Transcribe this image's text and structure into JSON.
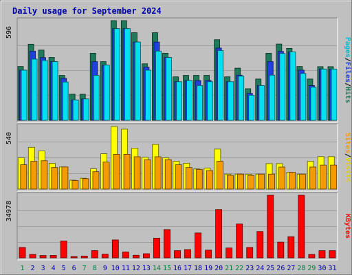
{
  "chart_data": [
    {
      "type": "bar",
      "title": "Daily usage for September 2024",
      "x": [
        "1",
        "2",
        "3",
        "4",
        "5",
        "6",
        "7",
        "8",
        "9",
        "10",
        "11",
        "12",
        "13",
        "14",
        "15",
        "16",
        "17",
        "18",
        "19",
        "20",
        "21",
        "22",
        "23",
        "24",
        "25",
        "26",
        "27",
        "28",
        "29",
        "30",
        "31"
      ],
      "weekend_days": [
        "1",
        "7",
        "8",
        "14",
        "15",
        "21",
        "22",
        "28",
        "29"
      ],
      "ymax_label": "596",
      "ylim": [
        0,
        596
      ],
      "series": [
        {
          "name": "Hits",
          "color": "#1e7a5a",
          "values": [
            322,
            455,
            420,
            376,
            269,
            156,
            156,
            401,
            351,
            596,
            596,
            524,
            338,
            524,
            401,
            260,
            269,
            269,
            269,
            482,
            260,
            312,
            189,
            247,
            401,
            456,
            430,
            322,
            247,
            321,
            321
          ]
        },
        {
          "name": "Files",
          "color": "#1f3fe0",
          "values": [
            300,
            413,
            375,
            351,
            251,
            122,
            128,
            351,
            330,
            548,
            548,
            468,
            318,
            468,
            376,
            231,
            238,
            238,
            238,
            432,
            231,
            270,
            161,
            208,
            351,
            412,
            409,
            300,
            208,
            306,
            306
          ]
        },
        {
          "name": "Pages",
          "color": "#00e0f0",
          "values": [
            300,
            366,
            358,
            351,
            229,
            122,
            128,
            269,
            330,
            548,
            548,
            468,
            300,
            414,
            376,
            231,
            238,
            208,
            231,
            417,
            231,
            264,
            150,
            208,
            270,
            400,
            409,
            280,
            198,
            306,
            306
          ]
        }
      ]
    },
    {
      "type": "bar",
      "ymax_label": "540",
      "ylim": [
        0,
        540
      ],
      "series": [
        {
          "name": "Visits",
          "color": "#ffff00",
          "values": [
            270,
            360,
            330,
            223,
            191,
            77,
            94,
            175,
            305,
            540,
            517,
            353,
            274,
            385,
            270,
            240,
            223,
            174,
            182,
            345,
            129,
            129,
            128,
            129,
            220,
            220,
            145,
            129,
            240,
            280,
            280
          ]
        },
        {
          "name": "Sites",
          "color": "#f49b00",
          "values": [
            210,
            240,
            245,
            186,
            191,
            74,
            90,
            150,
            233,
            300,
            300,
            279,
            254,
            279,
            254,
            210,
            186,
            170,
            160,
            240,
            119,
            129,
            118,
            129,
            129,
            190,
            145,
            129,
            190,
            207,
            207
          ]
        }
      ]
    },
    {
      "type": "bar",
      "ymax_label": "34978",
      "ylim": [
        0,
        34978
      ],
      "series": [
        {
          "name": "KBytes",
          "color": "#ff0000",
          "values": [
            5790,
            1890,
            1300,
            1330,
            9360,
            700,
            1000,
            4020,
            2040,
            10000,
            3250,
            1430,
            2290,
            11000,
            15800,
            4000,
            4600,
            13900,
            4300,
            27000,
            5500,
            18900,
            5800,
            14700,
            34978,
            8800,
            11800,
            34978,
            1900,
            4000,
            4000
          ]
        }
      ]
    }
  ],
  "right_labels": {
    "top": [
      {
        "text": "Pages",
        "color": "#00c0d0"
      },
      {
        "text": "/",
        "color": "#000000"
      },
      {
        "text": "Files",
        "color": "#1f3fe0"
      },
      {
        "text": "/",
        "color": "#000000"
      },
      {
        "text": "Hits",
        "color": "#1e7a5a"
      }
    ],
    "middle": [
      {
        "text": "Sites",
        "color": "#f49b00"
      },
      {
        "text": "/",
        "color": "#000000"
      },
      {
        "text": "Visits",
        "color": "#e0d000"
      }
    ],
    "bottom": [
      {
        "text": "KBytes",
        "color": "#ff0000"
      }
    ]
  },
  "colors": {
    "weekday_label": "#0000aa",
    "weekend_label": "#008040"
  }
}
